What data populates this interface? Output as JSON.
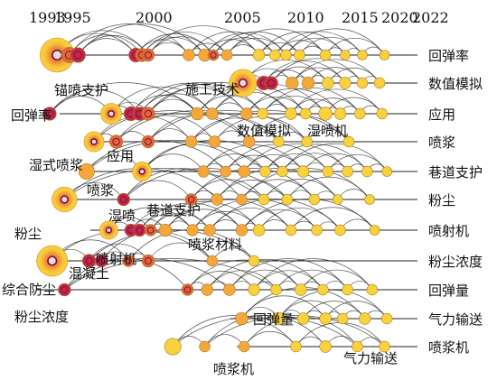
{
  "years": [
    "1993",
    "1995",
    "2000",
    "2005",
    "2010",
    "2015",
    "2020",
    "2022"
  ],
  "clusters": [
    {
      "id": "c1",
      "label": "回弹率",
      "nodes": [
        {
          "year": 1993.6,
          "size": 3.4,
          "tone": 0
        },
        {
          "year": 1994.6,
          "size": 1.2,
          "tone": 2
        },
        {
          "year": 1995.3,
          "size": 1.1,
          "tone": 3
        },
        {
          "year": 2000.0,
          "size": 1.0,
          "tone": 3
        },
        {
          "year": 2000.5,
          "size": 0.9,
          "tone": 2
        },
        {
          "year": 2001.0,
          "size": 0.8,
          "tone": 2
        },
        {
          "year": 2004.3,
          "size": 0.7,
          "tone": 1
        },
        {
          "year": 2005.6,
          "size": 0.8,
          "tone": 1
        },
        {
          "year": 2006.3,
          "size": 0.6,
          "tone": 2
        },
        {
          "year": 2007.4,
          "size": 0.6,
          "tone": 1
        },
        {
          "year": 2010.0,
          "size": 0.7,
          "tone": 0
        },
        {
          "year": 2011.3,
          "size": 0.6,
          "tone": 0
        },
        {
          "year": 2012.2,
          "size": 0.6,
          "tone": 0
        },
        {
          "year": 2013.3,
          "size": 0.6,
          "tone": 0
        },
        {
          "year": 2015.4,
          "size": 0.6,
          "tone": 0
        },
        {
          "year": 2017.0,
          "size": 0.5,
          "tone": 0
        },
        {
          "year": 2018.4,
          "size": 0.5,
          "tone": 0
        },
        {
          "year": 2020.2,
          "size": 0.5,
          "tone": 0
        }
      ]
    },
    {
      "id": "c2",
      "label": "数值模拟",
      "nodes": [
        {
          "year": 2008.7,
          "size": 2.6,
          "tone": 0
        },
        {
          "year": 2010.4,
          "size": 1.0,
          "tone": 3
        },
        {
          "year": 2011.0,
          "size": 0.9,
          "tone": 3
        },
        {
          "year": 2012.7,
          "size": 0.8,
          "tone": 1
        },
        {
          "year": 2014.0,
          "size": 0.8,
          "tone": 1
        },
        {
          "year": 2015.6,
          "size": 0.7,
          "tone": 0
        },
        {
          "year": 2017.0,
          "size": 0.7,
          "tone": 0
        },
        {
          "year": 2018.4,
          "size": 0.6,
          "tone": 0
        },
        {
          "year": 2019.8,
          "size": 0.6,
          "tone": 0
        }
      ]
    },
    {
      "id": "c3",
      "label": "应用",
      "nodes": [
        {
          "year": 1993.0,
          "size": 0.9,
          "tone": 3
        },
        {
          "year": 1998.0,
          "size": 1.8,
          "tone": 0
        },
        {
          "year": 1999.6,
          "size": 1.0,
          "tone": 3
        },
        {
          "year": 2000.3,
          "size": 0.9,
          "tone": 3
        },
        {
          "year": 2001.0,
          "size": 0.9,
          "tone": 2
        },
        {
          "year": 2005.0,
          "size": 0.8,
          "tone": 1
        },
        {
          "year": 2006.2,
          "size": 0.7,
          "tone": 1
        },
        {
          "year": 2009.0,
          "size": 0.7,
          "tone": 1
        },
        {
          "year": 2010.3,
          "size": 0.6,
          "tone": 0
        },
        {
          "year": 2012.6,
          "size": 0.7,
          "tone": 0
        },
        {
          "year": 2013.8,
          "size": 0.6,
          "tone": 0
        },
        {
          "year": 2015.4,
          "size": 0.9,
          "tone": 0
        },
        {
          "year": 2016.6,
          "size": 0.7,
          "tone": 0
        },
        {
          "year": 2018.2,
          "size": 0.6,
          "tone": 0
        },
        {
          "year": 2020.0,
          "size": 0.6,
          "tone": 0
        }
      ]
    },
    {
      "id": "c4",
      "label": "喷浆",
      "nodes": [
        {
          "year": 1996.6,
          "size": 1.7,
          "tone": 0
        },
        {
          "year": 1998.4,
          "size": 0.9,
          "tone": 2
        },
        {
          "year": 2001.0,
          "size": 0.8,
          "tone": 2
        },
        {
          "year": 2004.5,
          "size": 0.7,
          "tone": 1
        },
        {
          "year": 2006.4,
          "size": 0.7,
          "tone": 1
        },
        {
          "year": 2009.2,
          "size": 0.7,
          "tone": 1
        },
        {
          "year": 2011.6,
          "size": 0.6,
          "tone": 0
        },
        {
          "year": 2013.9,
          "size": 0.6,
          "tone": 0
        },
        {
          "year": 2017.3,
          "size": 0.6,
          "tone": 0
        }
      ]
    },
    {
      "id": "c5",
      "label": "巷道支护",
      "nodes": [
        {
          "year": 1996.0,
          "size": 1.2,
          "tone": 1
        },
        {
          "year": 2000.5,
          "size": 1.6,
          "tone": 0
        },
        {
          "year": 2005.5,
          "size": 0.7,
          "tone": 1
        },
        {
          "year": 2007.3,
          "size": 0.6,
          "tone": 1
        },
        {
          "year": 2008.8,
          "size": 0.7,
          "tone": 1
        },
        {
          "year": 2010.5,
          "size": 0.6,
          "tone": 0
        },
        {
          "year": 2011.9,
          "size": 0.6,
          "tone": 0
        },
        {
          "year": 2013.6,
          "size": 0.7,
          "tone": 0
        },
        {
          "year": 2015.6,
          "size": 0.6,
          "tone": 0
        },
        {
          "year": 2017.2,
          "size": 0.6,
          "tone": 0
        },
        {
          "year": 2018.8,
          "size": 0.6,
          "tone": 0
        },
        {
          "year": 2020.4,
          "size": 0.5,
          "tone": 0
        }
      ]
    },
    {
      "id": "c6",
      "label": "粉尘",
      "nodes": [
        {
          "year": 1994.2,
          "size": 2.3,
          "tone": 0
        },
        {
          "year": 1999.0,
          "size": 0.8,
          "tone": 3
        },
        {
          "year": 2004.5,
          "size": 0.7,
          "tone": 2
        },
        {
          "year": 2006.6,
          "size": 0.7,
          "tone": 1
        },
        {
          "year": 2008.6,
          "size": 0.6,
          "tone": 1
        },
        {
          "year": 2010.4,
          "size": 0.6,
          "tone": 0
        },
        {
          "year": 2012.3,
          "size": 0.6,
          "tone": 0
        },
        {
          "year": 2014.5,
          "size": 0.6,
          "tone": 0
        },
        {
          "year": 2016.4,
          "size": 0.5,
          "tone": 0
        },
        {
          "year": 2019.0,
          "size": 0.5,
          "tone": 0
        }
      ]
    },
    {
      "id": "c7",
      "label": "喷射机",
      "nodes": [
        {
          "year": 1997.8,
          "size": 1.5,
          "tone": 0
        },
        {
          "year": 1999.6,
          "size": 0.8,
          "tone": 3
        },
        {
          "year": 2000.3,
          "size": 0.8,
          "tone": 3
        },
        {
          "year": 2001.2,
          "size": 0.7,
          "tone": 2
        },
        {
          "year": 2002.4,
          "size": 0.8,
          "tone": 1
        },
        {
          "year": 2004.6,
          "size": 0.7,
          "tone": 1
        },
        {
          "year": 2006.0,
          "size": 0.7,
          "tone": 1
        },
        {
          "year": 2008.6,
          "size": 0.7,
          "tone": 1
        },
        {
          "year": 2010.0,
          "size": 0.7,
          "tone": 0
        },
        {
          "year": 2012.6,
          "size": 0.6,
          "tone": 0
        },
        {
          "year": 2014.7,
          "size": 0.6,
          "tone": 0
        },
        {
          "year": 2016.6,
          "size": 0.6,
          "tone": 0
        },
        {
          "year": 2019.4,
          "size": 0.5,
          "tone": 0
        }
      ]
    },
    {
      "id": "c8",
      "label": "粉尘浓度",
      "nodes": [
        {
          "year": 1993.2,
          "size": 3.0,
          "tone": 0
        },
        {
          "year": 1996.2,
          "size": 0.9,
          "tone": 3
        },
        {
          "year": 1997.2,
          "size": 0.8,
          "tone": 3
        },
        {
          "year": 1999.4,
          "size": 0.7,
          "tone": 2
        },
        {
          "year": 2001.0,
          "size": 0.8,
          "tone": 2
        },
        {
          "year": 2006.2,
          "size": 0.6,
          "tone": 1
        },
        {
          "year": 2009.6,
          "size": 0.6,
          "tone": 0
        }
      ]
    },
    {
      "id": "c9",
      "label": "回弹量",
      "nodes": [
        {
          "year": 1994.2,
          "size": 0.8,
          "tone": 3
        },
        {
          "year": 2004.2,
          "size": 0.7,
          "tone": 2
        },
        {
          "year": 2005.8,
          "size": 0.7,
          "tone": 1
        },
        {
          "year": 2007.6,
          "size": 0.7,
          "tone": 1
        },
        {
          "year": 2009.6,
          "size": 0.7,
          "tone": 0
        },
        {
          "year": 2011.4,
          "size": 0.6,
          "tone": 0
        },
        {
          "year": 2013.4,
          "size": 0.7,
          "tone": 0
        },
        {
          "year": 2015.2,
          "size": 0.6,
          "tone": 0
        },
        {
          "year": 2017.2,
          "size": 0.6,
          "tone": 0
        },
        {
          "year": 2019.2,
          "size": 0.6,
          "tone": 0
        }
      ]
    },
    {
      "id": "c10",
      "label": "气力输送",
      "nodes": [
        {
          "year": 2008.6,
          "size": 0.8,
          "tone": 1
        },
        {
          "year": 2011.6,
          "size": 0.8,
          "tone": 0
        },
        {
          "year": 2013.6,
          "size": 0.7,
          "tone": 0
        },
        {
          "year": 2015.4,
          "size": 0.7,
          "tone": 0
        },
        {
          "year": 2016.8,
          "size": 0.6,
          "tone": 0
        },
        {
          "year": 2018.6,
          "size": 0.7,
          "tone": 0
        },
        {
          "year": 2020.4,
          "size": 0.6,
          "tone": 0
        }
      ]
    },
    {
      "id": "c11",
      "label": "喷浆机",
      "nodes": [
        {
          "year": 2003.0,
          "size": 1.3,
          "tone": 0
        },
        {
          "year": 2005.6,
          "size": 0.6,
          "tone": 1
        },
        {
          "year": 2008.8,
          "size": 0.6,
          "tone": 1
        },
        {
          "year": 2013.0,
          "size": 0.6,
          "tone": 0
        },
        {
          "year": 2015.4,
          "size": 0.7,
          "tone": 0
        },
        {
          "year": 2018.0,
          "size": 0.6,
          "tone": 0
        },
        {
          "year": 2020.2,
          "size": 0.6,
          "tone": 0
        }
      ]
    }
  ],
  "keywords": [
    {
      "id": "k-maopen",
      "text": "锚喷支护"
    },
    {
      "id": "k-huitanlv",
      "text": "回弹率"
    },
    {
      "id": "k-shigong",
      "text": "施工技术"
    },
    {
      "id": "k-shuzhi",
      "text": "数值模拟"
    },
    {
      "id": "k-shipenji",
      "text": "湿喷机"
    },
    {
      "id": "k-shishi",
      "text": "湿式喷浆"
    },
    {
      "id": "k-yingyong",
      "text": "应用"
    },
    {
      "id": "k-penjiang",
      "text": "喷浆"
    },
    {
      "id": "k-shipen",
      "text": "湿喷"
    },
    {
      "id": "k-hangdao",
      "text": "巷道支护"
    },
    {
      "id": "k-fenchen",
      "text": "粉尘"
    },
    {
      "id": "k-penjiangcailiao",
      "text": "喷浆材料"
    },
    {
      "id": "k-hunningtu",
      "text": "混凝土"
    },
    {
      "id": "k-penshe",
      "text": "喷射机"
    },
    {
      "id": "k-zonghe",
      "text": "综合防尘"
    },
    {
      "id": "k-fenchennongdu",
      "text": "粉尘浓度"
    },
    {
      "id": "k-huitanliang",
      "text": "回弹量"
    },
    {
      "id": "k-qili",
      "text": "气力输送"
    },
    {
      "id": "k-penjiangji",
      "text": "喷浆机"
    }
  ],
  "palette": {
    "fill": [
      "#f7d23c",
      "#f4a83a",
      "#e2663a",
      "#c2274b"
    ],
    "ring": "#7a1438",
    "arc": "#1a1a1a",
    "line": "#222222"
  }
}
